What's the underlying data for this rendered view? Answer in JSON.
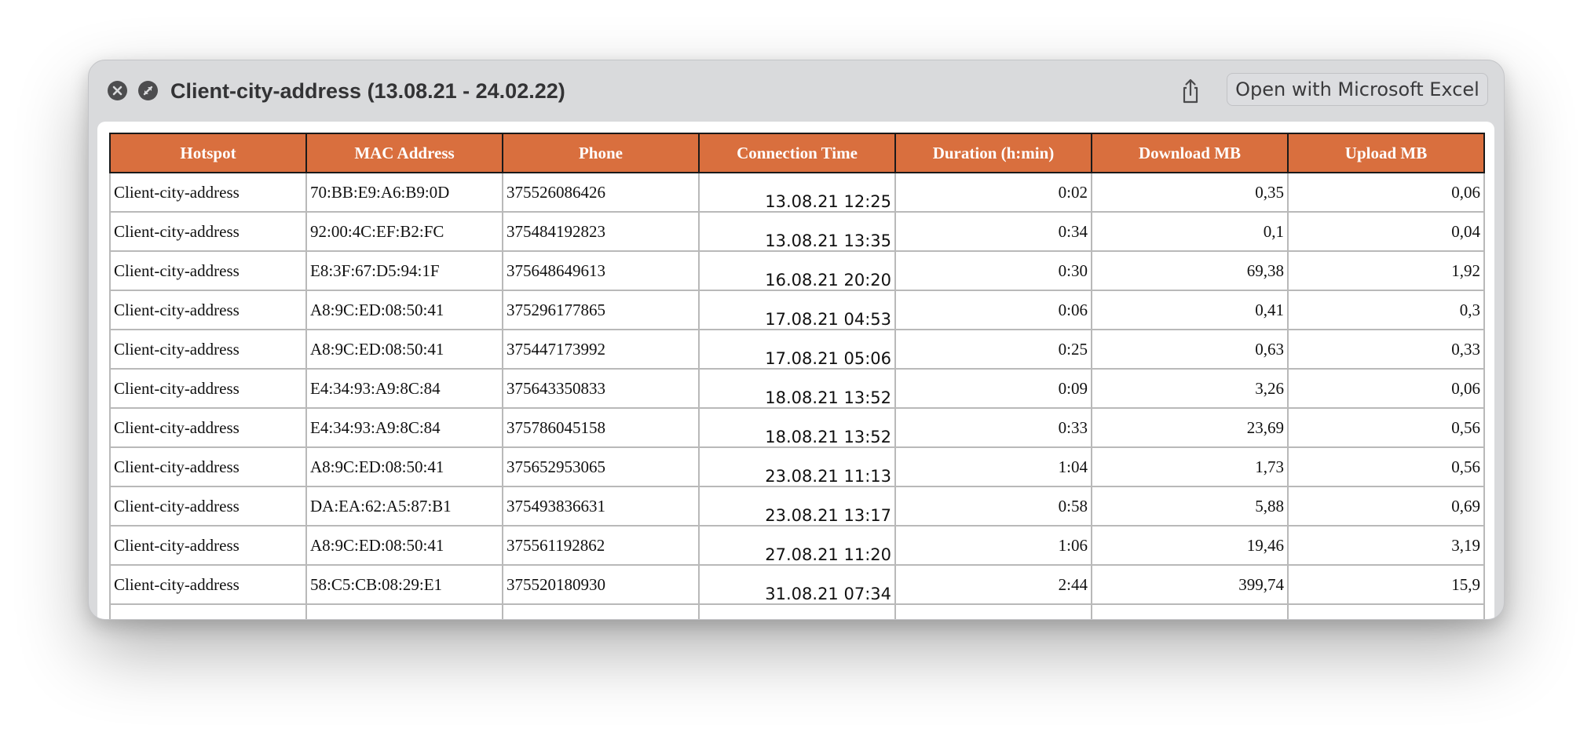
{
  "window": {
    "title": "Client-city-address (13.08.21 - 24.02.22)",
    "open_button_label": "Open with Microsoft Excel",
    "icons": {
      "close": "close-icon",
      "zoom": "fullscreen-icon",
      "share": "share-icon"
    }
  },
  "table": {
    "header_color": "#d96f3e",
    "columns": [
      "Hotspot",
      "MAC Address",
      "Phone",
      "Connection Time",
      "Duration (h:min)",
      "Download MB",
      "Upload MB"
    ],
    "rows": [
      [
        "Client-city-address",
        "70:BB:E9:A6:B9:0D",
        "375526086426",
        "13.08.21 12:25",
        "0:02",
        "0,35",
        "0,06"
      ],
      [
        "Client-city-address",
        "92:00:4C:EF:B2:FC",
        "375484192823",
        "13.08.21 13:35",
        "0:34",
        "0,1",
        "0,04"
      ],
      [
        "Client-city-address",
        "E8:3F:67:D5:94:1F",
        "375648649613",
        "16.08.21 20:20",
        "0:30",
        "69,38",
        "1,92"
      ],
      [
        "Client-city-address",
        "A8:9C:ED:08:50:41",
        "375296177865",
        "17.08.21 04:53",
        "0:06",
        "0,41",
        "0,3"
      ],
      [
        "Client-city-address",
        "A8:9C:ED:08:50:41",
        "375447173992",
        "17.08.21 05:06",
        "0:25",
        "0,63",
        "0,33"
      ],
      [
        "Client-city-address",
        "E4:34:93:A9:8C:84",
        "375643350833",
        "18.08.21 13:52",
        "0:09",
        "3,26",
        "0,06"
      ],
      [
        "Client-city-address",
        "E4:34:93:A9:8C:84",
        "375786045158",
        "18.08.21 13:52",
        "0:33",
        "23,69",
        "0,56"
      ],
      [
        "Client-city-address",
        "A8:9C:ED:08:50:41",
        "375652953065",
        "23.08.21 11:13",
        "1:04",
        "1,73",
        "0,56"
      ],
      [
        "Client-city-address",
        "DA:EA:62:A5:87:B1",
        "375493836631",
        "23.08.21 13:17",
        "0:58",
        "5,88",
        "0,69"
      ],
      [
        "Client-city-address",
        "A8:9C:ED:08:50:41",
        "375561192862",
        "27.08.21 11:20",
        "1:06",
        "19,46",
        "3,19"
      ],
      [
        "Client-city-address",
        "58:C5:CB:08:29:E1",
        "375520180930",
        "31.08.21 07:34",
        "2:44",
        "399,74",
        "15,9"
      ],
      [
        "",
        "",
        "",
        "",
        "",
        "",
        ""
      ]
    ]
  }
}
